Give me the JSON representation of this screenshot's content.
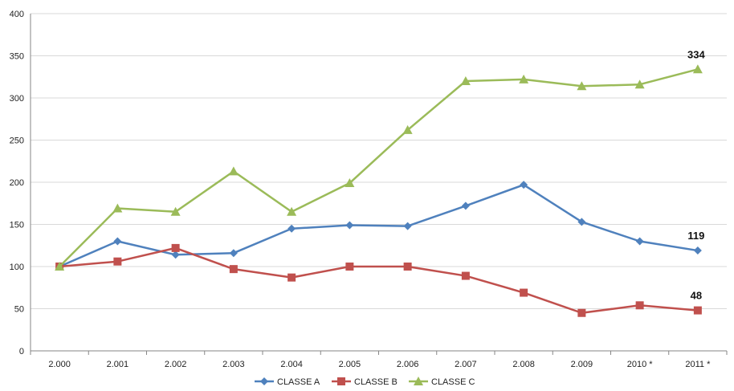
{
  "chart_data": {
    "type": "line",
    "title": "",
    "xlabel": "",
    "ylabel": "",
    "categories": [
      "2.000",
      "2.001",
      "2.002",
      "2.003",
      "2.004",
      "2.005",
      "2.006",
      "2.007",
      "2.008",
      "2.009",
      "2010 *",
      "2011 *"
    ],
    "ylim": [
      0,
      400
    ],
    "yticks": [
      0,
      50,
      100,
      150,
      200,
      250,
      300,
      350,
      400
    ],
    "grid": true,
    "legend_position": "bottom",
    "series": [
      {
        "name": "CLASSE A",
        "color": "#4F81BD",
        "marker": "diamond",
        "values": [
          100,
          130,
          114,
          116,
          145,
          149,
          148,
          172,
          197,
          153,
          130,
          119
        ]
      },
      {
        "name": "CLASSE B",
        "color": "#C0504D",
        "marker": "square",
        "values": [
          100,
          106,
          122,
          97,
          87,
          100,
          100,
          89,
          69,
          45,
          54,
          48
        ]
      },
      {
        "name": "CLASSE C",
        "color": "#9BBB59",
        "marker": "triangle",
        "values": [
          100,
          169,
          165,
          213,
          165,
          199,
          262,
          320,
          322,
          314,
          316,
          334
        ]
      }
    ],
    "end_labels": [
      "119",
      "48",
      "334"
    ]
  }
}
